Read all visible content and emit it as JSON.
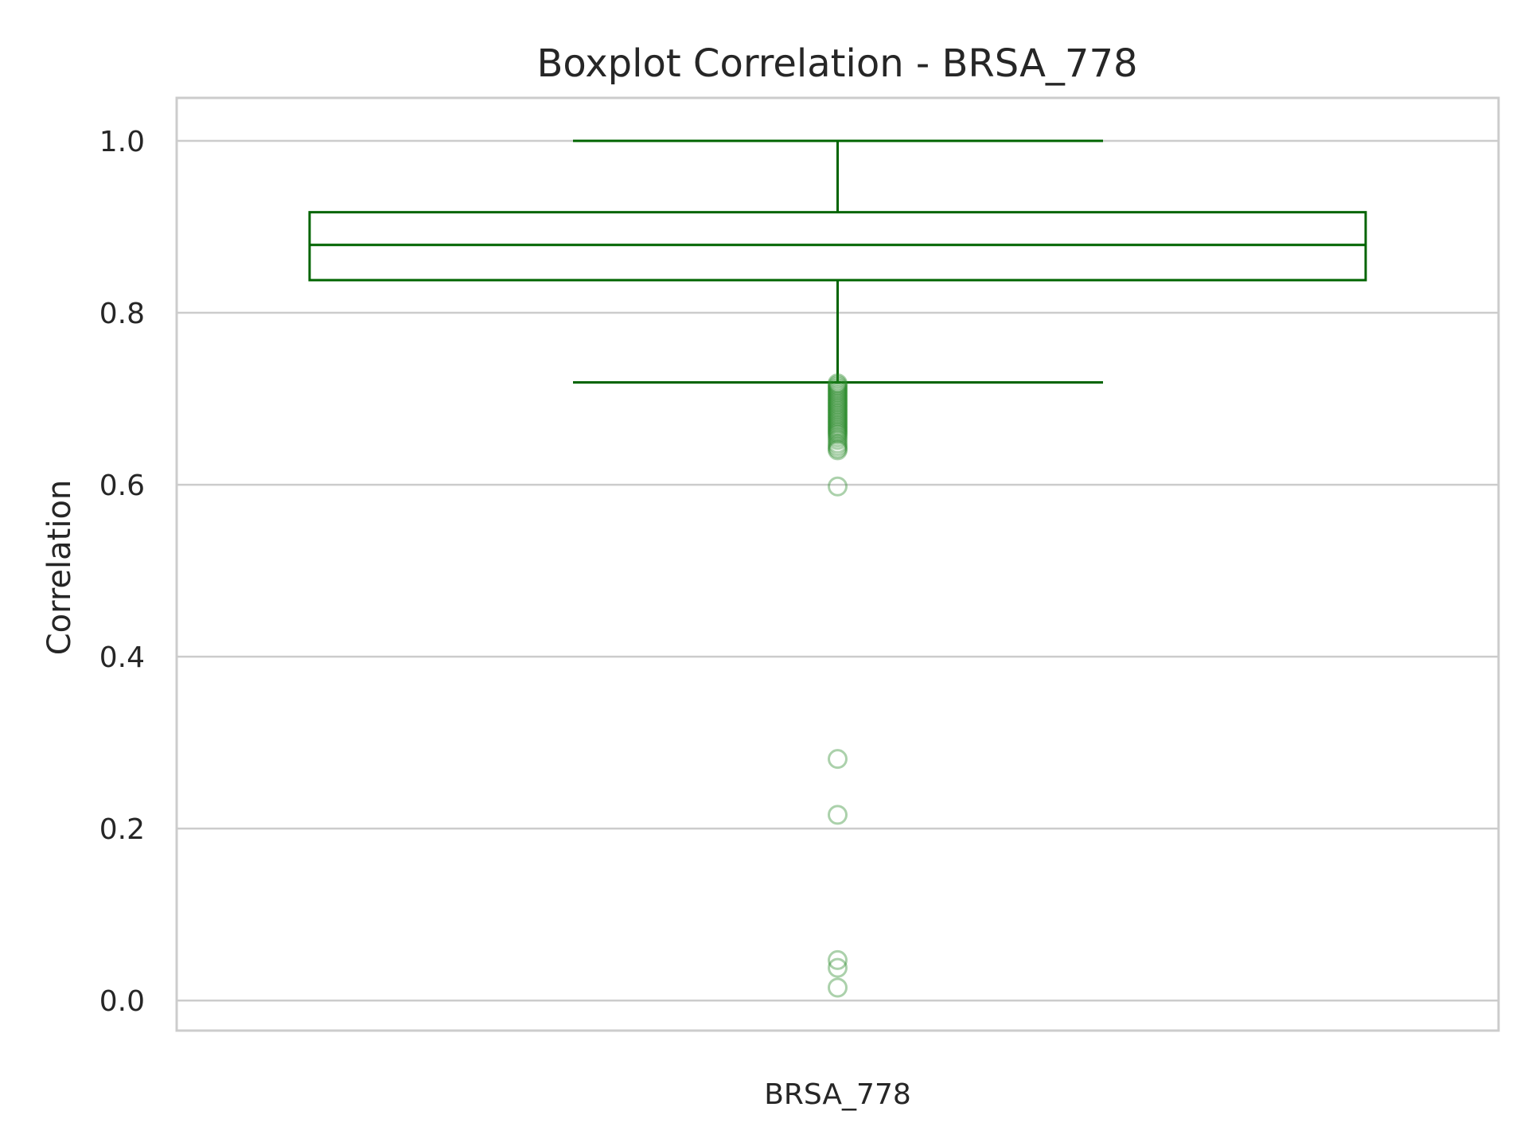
{
  "chart_data": {
    "type": "boxplot",
    "title": "Boxplot Correlation - BRSA_778",
    "xlabel": "",
    "ylabel": "Correlation",
    "categories": [
      "BRSA_778"
    ],
    "ylim": [
      -0.035,
      1.05
    ],
    "yticks": [
      0.0,
      0.2,
      0.4,
      0.6,
      0.8,
      1.0
    ],
    "ytick_labels": [
      "0.0",
      "0.2",
      "0.4",
      "0.6",
      "0.8",
      "1.0"
    ],
    "grid": "horizontal",
    "box": {
      "whisker_high": 1.0,
      "q3": 0.917,
      "median": 0.879,
      "q1": 0.838,
      "whisker_low": 0.719
    },
    "outliers": [
      0.718,
      0.716,
      0.714,
      0.712,
      0.71,
      0.708,
      0.706,
      0.704,
      0.702,
      0.7,
      0.698,
      0.696,
      0.694,
      0.692,
      0.69,
      0.688,
      0.686,
      0.684,
      0.682,
      0.68,
      0.678,
      0.676,
      0.674,
      0.672,
      0.67,
      0.668,
      0.666,
      0.664,
      0.662,
      0.66,
      0.658,
      0.655,
      0.652,
      0.648,
      0.645,
      0.642,
      0.64,
      0.598,
      0.281,
      0.216,
      0.047,
      0.038,
      0.015
    ],
    "colors": {
      "box": "#006400",
      "outlier": "#2e8b2e",
      "grid": "#cccccc",
      "spine": "#cccccc",
      "text": "#262626"
    }
  }
}
